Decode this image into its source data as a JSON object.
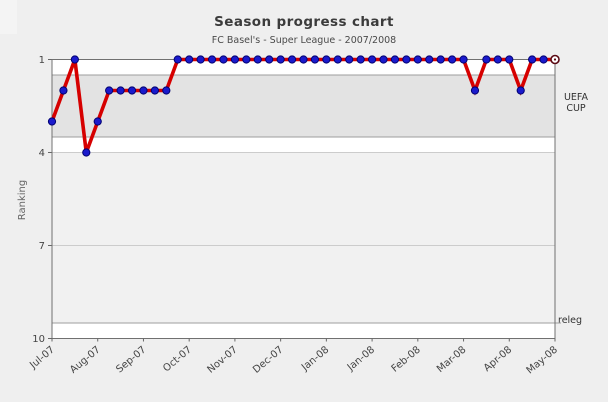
{
  "header": {
    "title": "Season progress chart",
    "subtitle": "FC Basel's - Super League - 2007/2008"
  },
  "axes": {
    "y_label": "Ranking"
  },
  "annotations": {
    "uefa_cup": "UEFA\nCUP",
    "releg": "releg"
  },
  "chart_data": {
    "type": "line",
    "title": "Season progress chart",
    "subtitle": "FC Basel's - Super League - 2007/2008",
    "ylabel": "Ranking",
    "y_inverted": true,
    "ylim": [
      1,
      10
    ],
    "y_ticks": [
      1,
      4,
      7,
      10
    ],
    "x_tick_labels": [
      "Jul-07",
      "Aug-07",
      "Sep-07",
      "Oct-07",
      "Nov-07",
      "Dec-07",
      "Jan-08",
      "Jan-08",
      "Feb-08",
      "Mar-08",
      "Apr-08",
      "May-08"
    ],
    "x_tick_every": 4,
    "values": [
      3,
      2,
      1,
      4,
      3,
      2,
      2,
      2,
      2,
      2,
      2,
      1,
      1,
      1,
      1,
      1,
      1,
      1,
      1,
      1,
      1,
      1,
      1,
      1,
      1,
      1,
      1,
      1,
      1,
      1,
      1,
      1,
      1,
      1,
      1,
      1,
      1,
      2,
      1,
      1,
      1,
      2,
      1,
      1,
      1
    ],
    "zones": [
      {
        "name": "uefa-cup-zone",
        "label": "UEFA CUP",
        "from": 1.5,
        "to": 3.5,
        "fill": "#e3e3e3",
        "border": "#9e9e9e",
        "extend_right": 0
      },
      {
        "name": "mid-table-zone",
        "label": "",
        "from": 4,
        "to": 9.5,
        "fill": "#f1f1f1",
        "border": null,
        "extend_right": 0
      },
      {
        "name": "relegation-line",
        "label": "releg",
        "from": 9.5,
        "to": 9.5,
        "fill": null,
        "border": "#9e9e9e",
        "extend_right": 6
      }
    ],
    "grid": true,
    "line_color": "#d60000",
    "marker_color": "#1a1acc",
    "marker_edge_color": "#000070",
    "current_marker_color": "#5a0a14",
    "plot_background": "#ffffff",
    "page_background": "#efefef"
  }
}
